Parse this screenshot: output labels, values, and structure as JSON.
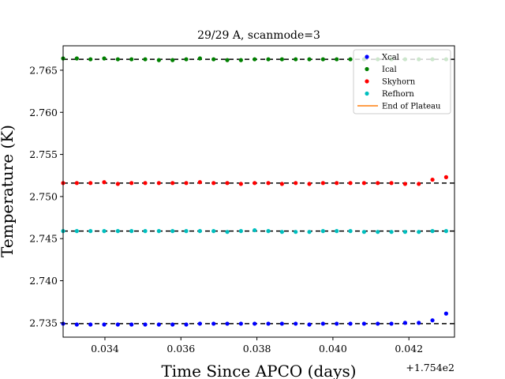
{
  "chart_data": {
    "type": "scatter",
    "title": "29/29 A, scanmode=3",
    "xlabel": "Time Since APCO (days)",
    "ylabel": "Temperature (K)",
    "x_offset_label": "+1.754e2",
    "xlim": [
      0.0329,
      0.0432
    ],
    "ylim": [
      2.7333,
      2.7679
    ],
    "x_ticks": [
      0.034,
      0.036,
      0.038,
      0.04,
      0.042
    ],
    "x_tick_labels": [
      "0.034",
      "0.036",
      "0.038",
      "0.040",
      "0.042"
    ],
    "y_ticks": [
      2.735,
      2.74,
      2.745,
      2.75,
      2.755,
      2.76,
      2.765
    ],
    "y_tick_labels": [
      "2.735",
      "2.740",
      "2.745",
      "2.750",
      "2.755",
      "2.760",
      "2.765"
    ],
    "grid": false,
    "legend_position": "top-right",
    "x": [
      0.0329,
      0.03326,
      0.03362,
      0.03398,
      0.03434,
      0.0347,
      0.03506,
      0.03542,
      0.03578,
      0.03614,
      0.0365,
      0.03686,
      0.03722,
      0.03758,
      0.03794,
      0.0383,
      0.03866,
      0.03902,
      0.03938,
      0.03974,
      0.0401,
      0.04046,
      0.04082,
      0.04118,
      0.04154,
      0.0419,
      0.04226,
      0.04262,
      0.04298
    ],
    "series": [
      {
        "name": "Xcal",
        "color": "#0000ff",
        "reference_level": 2.7349,
        "values": [
          2.7349,
          2.7348,
          2.7348,
          2.7348,
          2.7348,
          2.7348,
          2.7348,
          2.7348,
          2.7348,
          2.7348,
          2.7349,
          2.7349,
          2.7349,
          2.7349,
          2.7349,
          2.7349,
          2.7349,
          2.7349,
          2.7348,
          2.7349,
          2.7349,
          2.7349,
          2.7349,
          2.7349,
          2.7349,
          2.735,
          2.735,
          2.7353,
          2.7361
        ]
      },
      {
        "name": "Ical",
        "color": "#008000",
        "reference_level": 2.7663,
        "values": [
          2.7664,
          2.7664,
          2.7663,
          2.7664,
          2.7663,
          2.7663,
          2.7663,
          2.7662,
          2.7662,
          2.7663,
          2.7664,
          2.7663,
          2.7662,
          2.7662,
          2.7663,
          2.7663,
          2.7663,
          2.7663,
          2.7663,
          2.7663,
          2.7663,
          2.7663,
          2.7663,
          2.7663,
          2.7663,
          2.7663,
          2.7663,
          2.7663,
          2.7663
        ]
      },
      {
        "name": "Skyhorn",
        "color": "#ff0000",
        "reference_level": 2.7516,
        "values": [
          2.7516,
          2.7516,
          2.7516,
          2.7517,
          2.7515,
          2.7516,
          2.7516,
          2.7516,
          2.7516,
          2.7516,
          2.7517,
          2.7516,
          2.7516,
          2.7515,
          2.7516,
          2.7516,
          2.7515,
          2.7516,
          2.7515,
          2.7516,
          2.7516,
          2.7516,
          2.7516,
          2.7516,
          2.7516,
          2.7515,
          2.7515,
          2.752,
          2.7523
        ]
      },
      {
        "name": "Refhorn",
        "color": "#00bfbf",
        "reference_level": 2.7459,
        "values": [
          2.7459,
          2.7459,
          2.7459,
          2.7459,
          2.7459,
          2.7459,
          2.7459,
          2.7459,
          2.7459,
          2.7459,
          2.7459,
          2.7459,
          2.7458,
          2.7459,
          2.746,
          2.7459,
          2.7458,
          2.7458,
          2.7458,
          2.7459,
          2.7459,
          2.7459,
          2.7458,
          2.7458,
          2.7458,
          2.7458,
          2.7458,
          2.7459,
          2.7459
        ]
      }
    ],
    "legend": [
      {
        "label": "Xcal",
        "marker": "dot",
        "color": "#0000ff"
      },
      {
        "label": "Ical",
        "marker": "dot",
        "color": "#008000"
      },
      {
        "label": "Skyhorn",
        "marker": "dot",
        "color": "#ff0000"
      },
      {
        "label": "Refhorn",
        "marker": "dot",
        "color": "#00bfbf"
      },
      {
        "label": "End of Plateau",
        "marker": "line",
        "color": "#ff7f0e"
      }
    ]
  }
}
